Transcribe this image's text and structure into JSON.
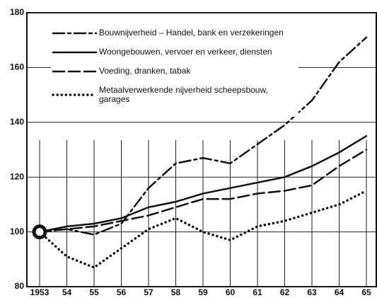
{
  "chart_data": {
    "type": "line",
    "categories": [
      "1953",
      "54",
      "55",
      "56",
      "57",
      "58",
      "59",
      "60",
      "61",
      "62",
      "63",
      "64",
      "65"
    ],
    "series": [
      {
        "name": "Bouwnijverheid – Handel, bank en verzekeringen",
        "color": "#111111",
        "dash": "dashdot",
        "values": [
          100,
          101,
          99,
          103,
          116,
          125,
          127,
          125,
          132,
          139,
          148,
          162,
          171
        ]
      },
      {
        "name": "Woongebouwen, vervoer en verkeer, diensten",
        "color": "#111111",
        "dash": "solid",
        "values": [
          100,
          102,
          103,
          105,
          109,
          111,
          114,
          116,
          118,
          120,
          124,
          129,
          135
        ]
      },
      {
        "name": "Voeding, dranken, tabak",
        "color": "#111111",
        "dash": "dashed",
        "values": [
          100,
          101,
          102,
          104,
          106,
          109,
          112,
          112,
          114,
          115,
          117,
          124,
          130
        ]
      },
      {
        "name": "Metaalverwerkende nijverheid scheepsbouw, garages",
        "color": "#111111",
        "dash": "dotted",
        "values": [
          100,
          91,
          87,
          94,
          101,
          105,
          100,
          97,
          102,
          104,
          107,
          110,
          115
        ]
      }
    ],
    "ylim": [
      80,
      180
    ],
    "yticks": [
      80,
      100,
      120,
      140,
      160,
      180
    ],
    "grid": true
  }
}
